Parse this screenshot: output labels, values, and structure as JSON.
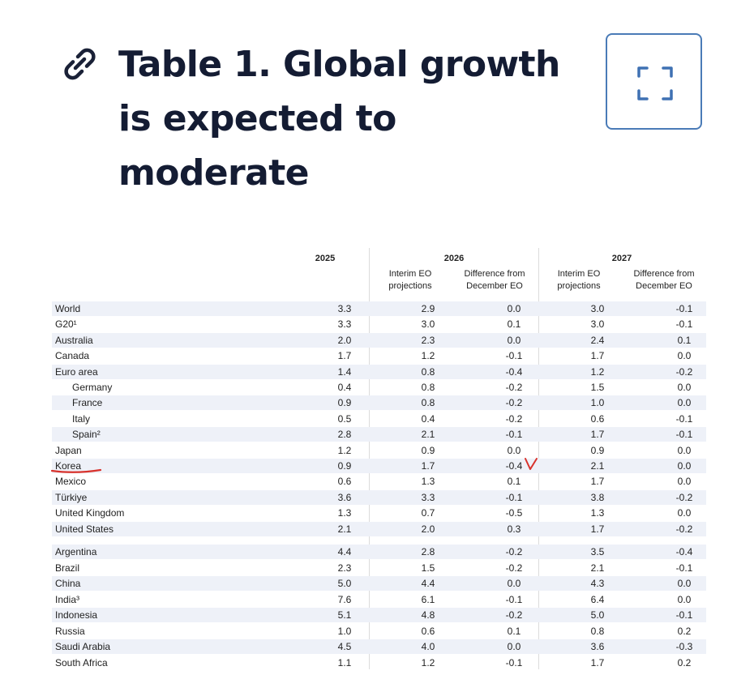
{
  "header": {
    "title_lines": [
      "Table 1. Global growth",
      "is expected to",
      "moderate"
    ],
    "link_icon": "link-icon",
    "expand_icon": "expand-icon"
  },
  "table": {
    "columns": {
      "y2025": "2025",
      "y2026": "2026",
      "y2027": "2027",
      "interim_line1": "Interim EO",
      "interim_line2": "projections",
      "diff_line1": "Difference from",
      "diff_line2": "December EO"
    },
    "rows": [
      {
        "name": "World",
        "c2025": "3.3",
        "i2026": "2.9",
        "d2026": "0.0",
        "i2027": "3.0",
        "d2027": "-0.1"
      },
      {
        "name": "G20¹",
        "c2025": "3.3",
        "i2026": "3.0",
        "d2026": "0.1",
        "i2027": "3.0",
        "d2027": "-0.1"
      },
      {
        "name": "Australia",
        "c2025": "2.0",
        "i2026": "2.3",
        "d2026": "0.0",
        "i2027": "2.4",
        "d2027": "0.1"
      },
      {
        "name": "Canada",
        "c2025": "1.7",
        "i2026": "1.2",
        "d2026": "-0.1",
        "i2027": "1.7",
        "d2027": "0.0"
      },
      {
        "name": "Euro area",
        "c2025": "1.4",
        "i2026": "0.8",
        "d2026": "-0.4",
        "i2027": "1.2",
        "d2027": "-0.2"
      },
      {
        "name": "Germany",
        "c2025": "0.4",
        "i2026": "0.8",
        "d2026": "-0.2",
        "i2027": "1.5",
        "d2027": "0.0"
      },
      {
        "name": "France",
        "c2025": "0.9",
        "i2026": "0.8",
        "d2026": "-0.2",
        "i2027": "1.0",
        "d2027": "0.0"
      },
      {
        "name": "Italy",
        "c2025": "0.5",
        "i2026": "0.4",
        "d2026": "-0.2",
        "i2027": "0.6",
        "d2027": "-0.1"
      },
      {
        "name": "Spain²",
        "c2025": "2.8",
        "i2026": "2.1",
        "d2026": "-0.1",
        "i2027": "1.7",
        "d2027": "-0.1"
      },
      {
        "name": "Japan",
        "c2025": "1.2",
        "i2026": "0.9",
        "d2026": "0.0",
        "i2027": "0.9",
        "d2027": "0.0"
      },
      {
        "name": "Korea",
        "c2025": "0.9",
        "i2026": "1.7",
        "d2026": "-0.4",
        "i2027": "2.1",
        "d2027": "0.0"
      },
      {
        "name": "Mexico",
        "c2025": "0.6",
        "i2026": "1.3",
        "d2026": "0.1",
        "i2027": "1.7",
        "d2027": "0.0"
      },
      {
        "name": "Türkiye",
        "c2025": "3.6",
        "i2026": "3.3",
        "d2026": "-0.1",
        "i2027": "3.8",
        "d2027": "-0.2"
      },
      {
        "name": "United Kingdom",
        "c2025": "1.3",
        "i2026": "0.7",
        "d2026": "-0.5",
        "i2027": "1.3",
        "d2027": "0.0"
      },
      {
        "name": "United States",
        "c2025": "2.1",
        "i2026": "2.0",
        "d2026": "0.3",
        "i2027": "1.7",
        "d2027": "-0.2"
      },
      {
        "name": "Argentina",
        "c2025": "4.4",
        "i2026": "2.8",
        "d2026": "-0.2",
        "i2027": "3.5",
        "d2027": "-0.4"
      },
      {
        "name": "Brazil",
        "c2025": "2.3",
        "i2026": "1.5",
        "d2026": "-0.2",
        "i2027": "2.1",
        "d2027": "-0.1"
      },
      {
        "name": "China",
        "c2025": "5.0",
        "i2026": "4.4",
        "d2026": "0.0",
        "i2027": "4.3",
        "d2027": "0.0"
      },
      {
        "name": "India³",
        "c2025": "7.6",
        "i2026": "6.1",
        "d2026": "-0.1",
        "i2027": "6.4",
        "d2027": "0.0"
      },
      {
        "name": "Indonesia",
        "c2025": "5.1",
        "i2026": "4.8",
        "d2026": "-0.2",
        "i2027": "5.0",
        "d2027": "-0.1"
      },
      {
        "name": "Russia",
        "c2025": "1.0",
        "i2026": "0.6",
        "d2026": "0.1",
        "i2027": "0.8",
        "d2027": "0.2"
      },
      {
        "name": "Saudi Arabia",
        "c2025": "4.5",
        "i2026": "4.0",
        "d2026": "0.0",
        "i2027": "3.6",
        "d2027": "-0.3"
      },
      {
        "name": "South Africa",
        "c2025": "1.1",
        "i2026": "1.2",
        "d2026": "-0.1",
        "i2027": "1.7",
        "d2027": "0.2"
      }
    ]
  },
  "annotations": {
    "highlight": "Korea",
    "underline_color": "#d8322c",
    "checkmark_color": "#d8322c"
  }
}
